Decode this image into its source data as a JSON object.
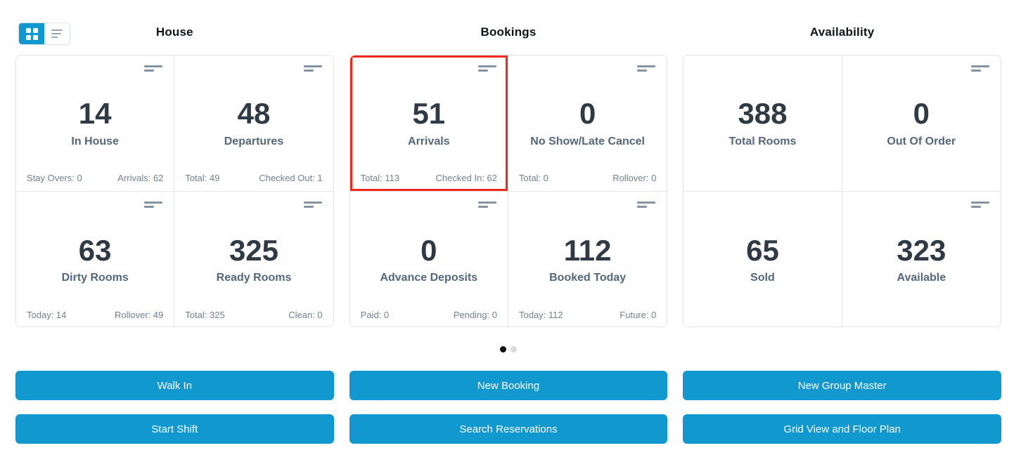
{
  "colors": {
    "accent": "#1199cf",
    "highlight": "#f3281c"
  },
  "view_toggle": {
    "grid_icon": "grid-view",
    "list_icon": "list-view",
    "active": "grid"
  },
  "sections": [
    {
      "title": "House",
      "cards": [
        {
          "value": "14",
          "label": "In House",
          "stat_left": "Stay Overs: 0",
          "stat_right": "Arrivals: 62"
        },
        {
          "value": "48",
          "label": "Departures",
          "stat_left": "Total: 49",
          "stat_right": "Checked Out: 1"
        },
        {
          "value": "63",
          "label": "Dirty Rooms",
          "stat_left": "Today: 14",
          "stat_right": "Rollover: 49"
        },
        {
          "value": "325",
          "label": "Ready Rooms",
          "stat_left": "Total: 325",
          "stat_right": "Clean: 0"
        }
      ]
    },
    {
      "title": "Bookings",
      "cards": [
        {
          "value": "51",
          "label": "Arrivals",
          "stat_left": "Total: 113",
          "stat_right": "Checked In: 62",
          "highlighted": true
        },
        {
          "value": "0",
          "label": "No Show/Late Cancel",
          "stat_left": "Total: 0",
          "stat_right": "Rollover: 0"
        },
        {
          "value": "0",
          "label": "Advance Deposits",
          "stat_left": "Paid: 0",
          "stat_right": "Pending: 0"
        },
        {
          "value": "112",
          "label": "Booked Today",
          "stat_left": "Today: 112",
          "stat_right": "Future: 0"
        }
      ]
    },
    {
      "title": "Availability",
      "cards": [
        {
          "value": "388",
          "label": "Total Rooms"
        },
        {
          "value": "0",
          "label": "Out Of Order"
        },
        {
          "value": "65",
          "label": "Sold"
        },
        {
          "value": "323",
          "label": "Available"
        }
      ]
    }
  ],
  "pagination": {
    "total_pages": 2,
    "active_page": 1
  },
  "buttons": [
    [
      "Walk In",
      "Start Shift"
    ],
    [
      "New Booking",
      "Search Reservations"
    ],
    [
      "New Group Master",
      "Grid View and Floor Plan"
    ]
  ]
}
